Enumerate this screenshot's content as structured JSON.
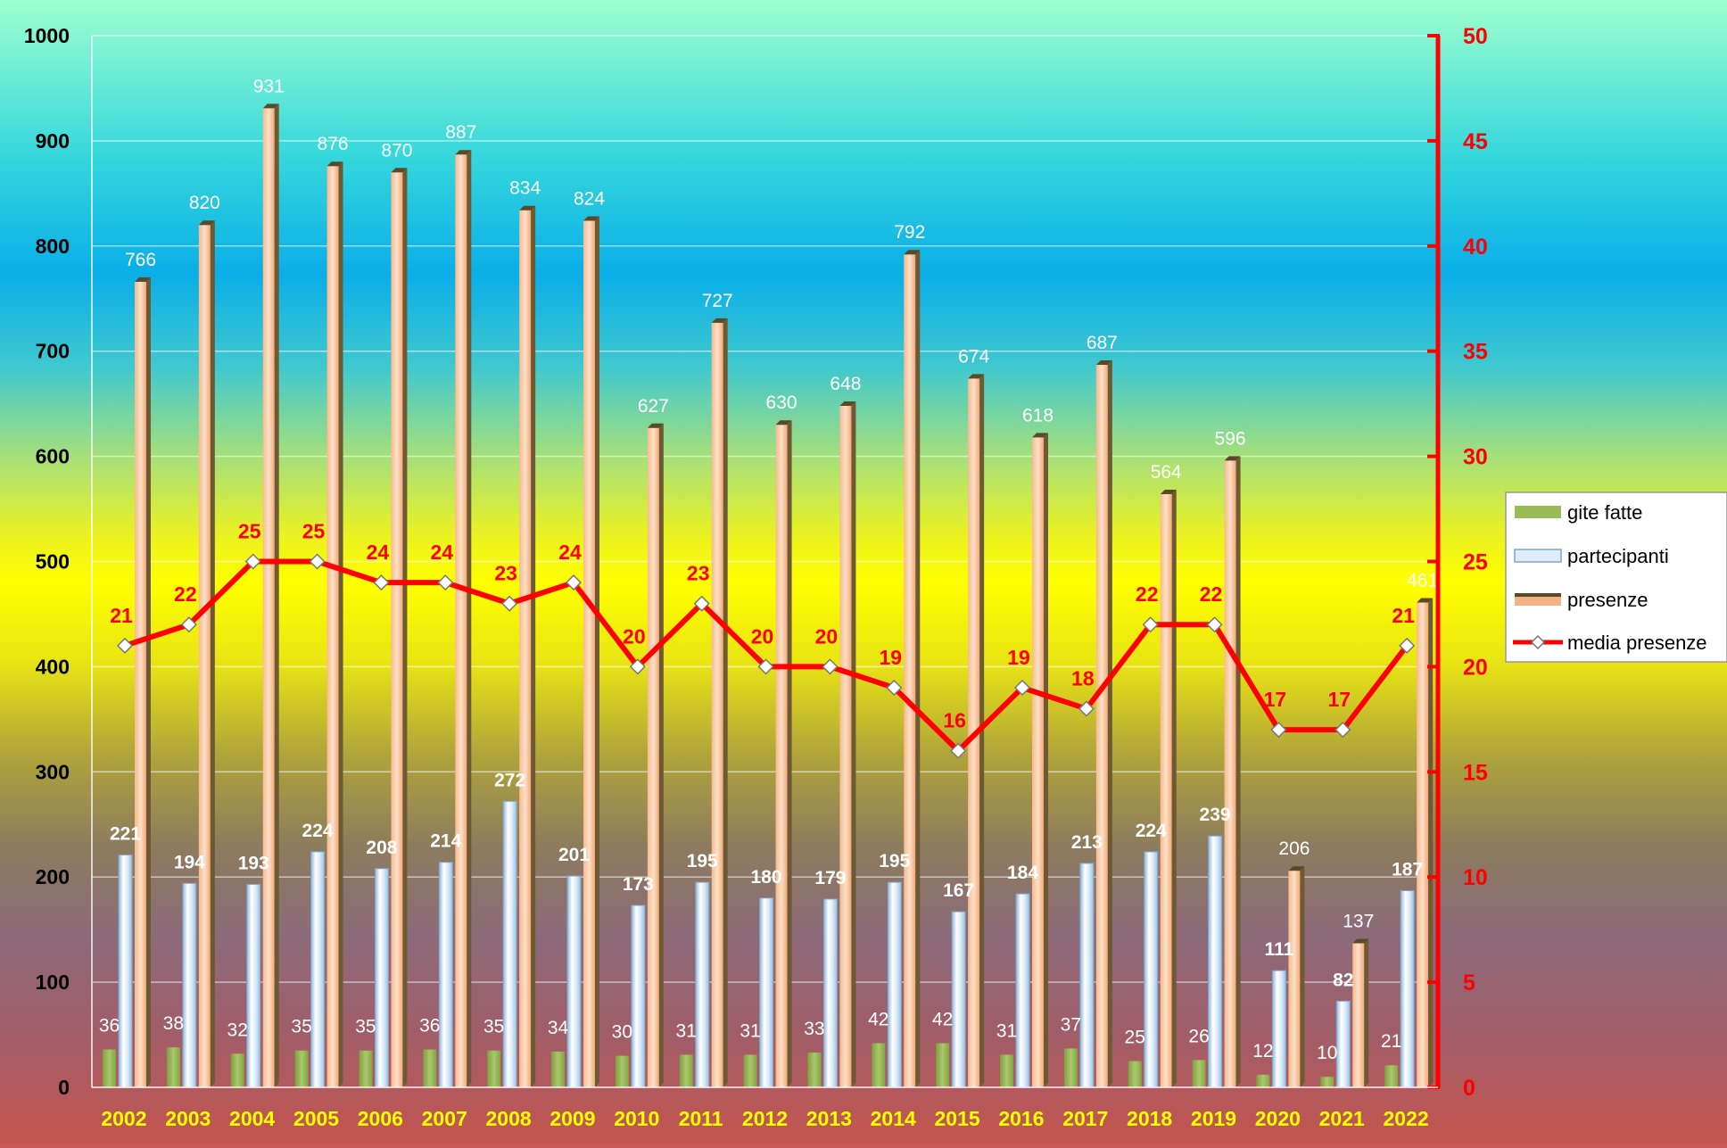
{
  "chart_data": {
    "type": "bar",
    "title": "",
    "xlabel": "",
    "ylabel": "",
    "categories": [
      "2002",
      "2003",
      "2004",
      "2005",
      "2006",
      "2007",
      "2008",
      "2009",
      "2010",
      "2011",
      "2012",
      "2013",
      "2014",
      "2015",
      "2016",
      "2017",
      "2018",
      "2019",
      "2020",
      "2021",
      "2022"
    ],
    "ylim": [
      0,
      1000
    ],
    "y2lim": [
      0,
      50
    ],
    "yticks": [
      "0",
      "100",
      "200",
      "300",
      "400",
      "500",
      "600",
      "700",
      "800",
      "900",
      "1000"
    ],
    "y2ticks": [
      "0",
      "5",
      "10",
      "15",
      "20",
      "25",
      "30",
      "35",
      "40",
      "45",
      "50"
    ],
    "grid": true,
    "legend_position": "right",
    "series": [
      {
        "name": "gite fatte",
        "type": "bar",
        "axis": "left",
        "color": "#9bbb59",
        "values": [
          36,
          38,
          32,
          35,
          35,
          36,
          35,
          34,
          30,
          31,
          31,
          33,
          42,
          42,
          31,
          37,
          25,
          26,
          12,
          10,
          21
        ]
      },
      {
        "name": "partecipanti",
        "type": "bar",
        "axis": "left",
        "color": "#c6dff2",
        "values": [
          221,
          194,
          193,
          224,
          208,
          214,
          272,
          201,
          173,
          195,
          180,
          179,
          195,
          167,
          184,
          213,
          224,
          239,
          111,
          82,
          187
        ]
      },
      {
        "name": "presenze",
        "type": "bar",
        "axis": "left",
        "color": "#f4b183",
        "values": [
          766,
          820,
          931,
          876,
          870,
          887,
          834,
          824,
          627,
          727,
          630,
          648,
          792,
          674,
          618,
          687,
          564,
          596,
          206,
          137,
          461
        ]
      },
      {
        "name": "media presenze",
        "type": "line",
        "axis": "right",
        "color": "#ff0000",
        "values": [
          21,
          22,
          25,
          25,
          24,
          24,
          23,
          24,
          20,
          23,
          20,
          20,
          19,
          16,
          19,
          18,
          22,
          22,
          17,
          17,
          21
        ]
      }
    ]
  }
}
